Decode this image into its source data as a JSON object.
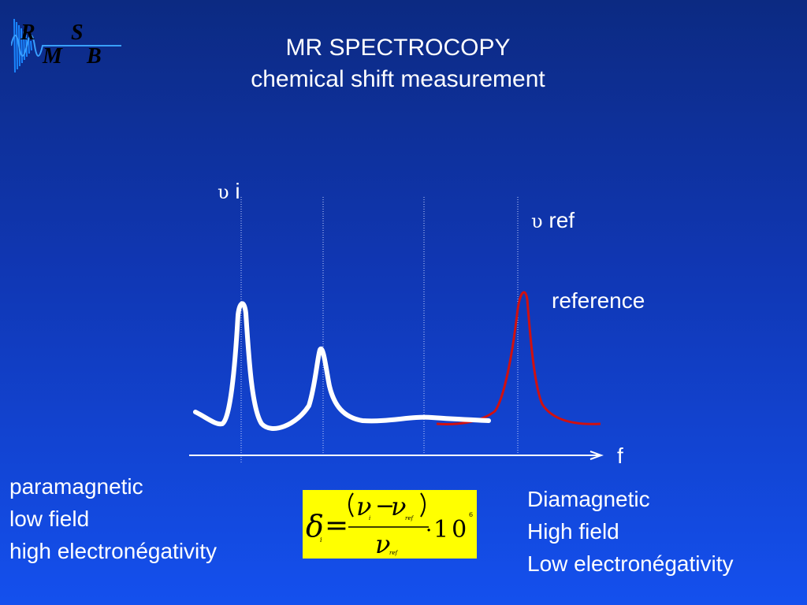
{
  "logo": {
    "letters": [
      "R",
      "S",
      "M",
      "B"
    ]
  },
  "title": {
    "line1": "MR SPECTROCOPY",
    "line2": "chemical shift measurement"
  },
  "labels": {
    "nu_symbol": "υ",
    "nu_i_suffix": "i",
    "nu_ref_suffix": "ref",
    "reference": "reference",
    "axis": "f"
  },
  "left_text": [
    "paramagnetic",
    "low field",
    "high electronégativity"
  ],
  "right_text": [
    "Diamagnetic",
    "High field",
    "Low electronégativity"
  ],
  "formula": {
    "delta": "δ",
    "sub_i": "i",
    "equals": "=",
    "nu": "ν",
    "minus": "−",
    "sub_ref": "ref",
    "dot": "·",
    "ten": "10",
    "exp": "6"
  },
  "colors": {
    "background_top": "#0c2a82",
    "background_bottom": "#1450ee",
    "sample_curve": "#ffffff",
    "reference_curve": "#d01010",
    "formula_background": "#ffff00"
  }
}
